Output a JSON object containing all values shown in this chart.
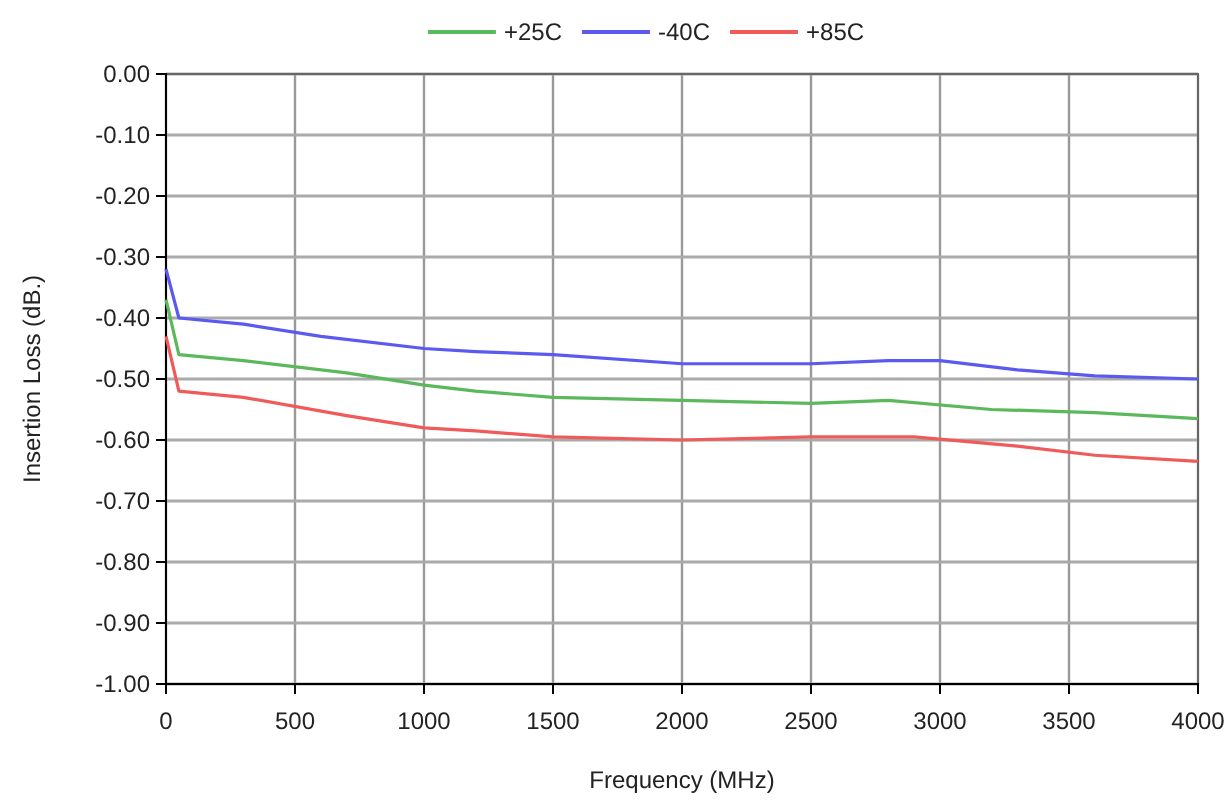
{
  "chart_data": {
    "type": "line",
    "xlabel": "Frequency (MHz)",
    "ylabel": "Insertion Loss (dB.)",
    "legend": "top",
    "grid": true,
    "marker": "none",
    "line_style": "solid",
    "xlim": [
      0,
      4000
    ],
    "xticks": [
      0,
      500,
      1000,
      1500,
      2000,
      2500,
      3000,
      3500,
      4000
    ],
    "ylim": [
      -1,
      0
    ],
    "yticks": [
      {
        "value": 0,
        "label": "0.00"
      },
      {
        "value": -0.1,
        "label": "-0.10"
      },
      {
        "value": -0.2,
        "label": "-0.20"
      },
      {
        "value": -0.3,
        "label": "-0.30"
      },
      {
        "value": -0.4,
        "label": "-0.40"
      },
      {
        "value": -0.5,
        "label": "-0.50"
      },
      {
        "value": -0.6,
        "label": "-0.60"
      },
      {
        "value": -0.7,
        "label": "-0.70"
      },
      {
        "value": -0.8,
        "label": "-0.80"
      },
      {
        "value": -0.9,
        "label": "-0.90"
      },
      {
        "value": -1,
        "label": "-1.00"
      }
    ],
    "series": [
      {
        "name": "+25C",
        "color": "#5cb85c",
        "x": [
          0,
          50,
          300,
          700,
          1000,
          1200,
          1500,
          2000,
          2500,
          2800,
          3200,
          3600,
          4000
        ],
        "values": [
          -0.37,
          -0.46,
          -0.47,
          -0.49,
          -0.51,
          -0.52,
          -0.53,
          -0.535,
          -0.54,
          -0.535,
          -0.55,
          -0.555,
          -0.565
        ]
      },
      {
        "name": "-40C",
        "color": "#5a5af0",
        "x": [
          0,
          50,
          300,
          600,
          1000,
          1200,
          1500,
          2000,
          2500,
          2800,
          3000,
          3300,
          3600,
          4000
        ],
        "values": [
          -0.32,
          -0.4,
          -0.41,
          -0.43,
          -0.45,
          -0.455,
          -0.46,
          -0.475,
          -0.475,
          -0.47,
          -0.47,
          -0.485,
          -0.495,
          -0.5
        ]
      },
      {
        "name": "+85C",
        "color": "#f05a5a",
        "x": [
          0,
          50,
          300,
          700,
          1000,
          1200,
          1500,
          2000,
          2500,
          2900,
          3300,
          3600,
          4000
        ],
        "values": [
          -0.43,
          -0.52,
          -0.53,
          -0.56,
          -0.58,
          -0.585,
          -0.595,
          -0.6,
          -0.595,
          -0.595,
          -0.61,
          -0.625,
          -0.635
        ]
      }
    ]
  }
}
